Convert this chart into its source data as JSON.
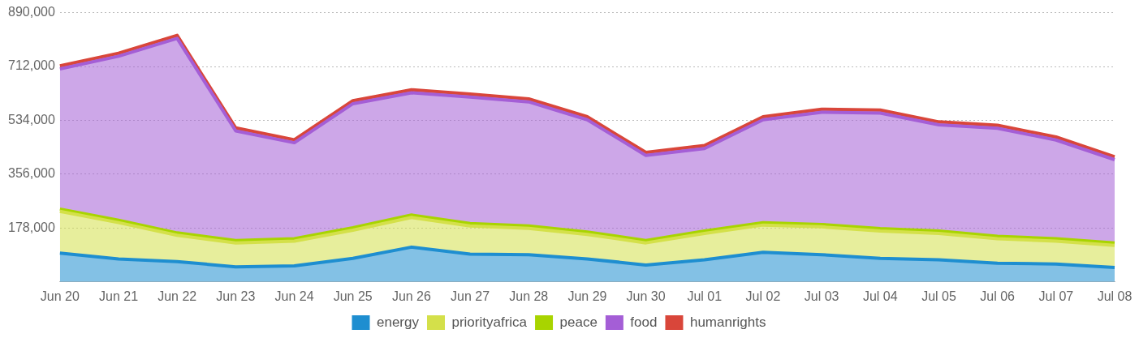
{
  "chart_data": {
    "type": "area",
    "stacked": true,
    "categories": [
      "Jun 20",
      "Jun 21",
      "Jun 22",
      "Jun 23",
      "Jun 24",
      "Jun 25",
      "Jun 26",
      "Jun 27",
      "Jun 28",
      "Jun 29",
      "Jun 30",
      "Jul 01",
      "Jul 02",
      "Jul 03",
      "Jul 04",
      "Jul 05",
      "Jul 06",
      "Jul 07",
      "Jul 08"
    ],
    "series": [
      {
        "name": "energy",
        "color": "#1e8ed0",
        "values": [
          95000,
          76000,
          67000,
          50000,
          53000,
          78000,
          115000,
          92000,
          90000,
          76000,
          56000,
          73000,
          98000,
          90000,
          78000,
          73000,
          62000,
          59000,
          48000
        ]
      },
      {
        "name": "priorityafrica",
        "color": "#d4e04a",
        "values": [
          138000,
          120000,
          87000,
          79000,
          82000,
          93000,
          98000,
          93000,
          87000,
          81000,
          73000,
          87000,
          90000,
          92000,
          90000,
          87000,
          81000,
          76000,
          73000
        ]
      },
      {
        "name": "peace",
        "color": "#a8d400",
        "values": [
          8000,
          8000,
          8000,
          8000,
          8000,
          8000,
          8000,
          8000,
          8000,
          8000,
          8000,
          8000,
          8000,
          8000,
          8000,
          8000,
          8000,
          8000,
          8000
        ]
      },
      {
        "name": "food",
        "color": "#a45ed6",
        "values": [
          463000,
          542000,
          643000,
          362000,
          317000,
          410000,
          404000,
          418000,
          410000,
          371000,
          281000,
          273000,
          340000,
          371000,
          382000,
          351000,
          357000,
          326000,
          275000
        ]
      },
      {
        "name": "humanrights",
        "color": "#d9463a",
        "values": [
          10000,
          10000,
          10000,
          10000,
          10000,
          10000,
          10000,
          10000,
          10000,
          10000,
          10000,
          10000,
          10000,
          10000,
          10000,
          10000,
          10000,
          10000,
          10000
        ]
      }
    ],
    "ylim": [
      0,
      890000
    ],
    "yticks": [
      {
        "value": 178000,
        "label": "178,000"
      },
      {
        "value": 356000,
        "label": "356,000"
      },
      {
        "value": 534000,
        "label": "534,000"
      },
      {
        "value": 712000,
        "label": "712,000"
      },
      {
        "value": 890000,
        "label": "890,000"
      }
    ],
    "grid": "y",
    "legend": "bottom",
    "marker": "none",
    "line_style": "solid"
  }
}
